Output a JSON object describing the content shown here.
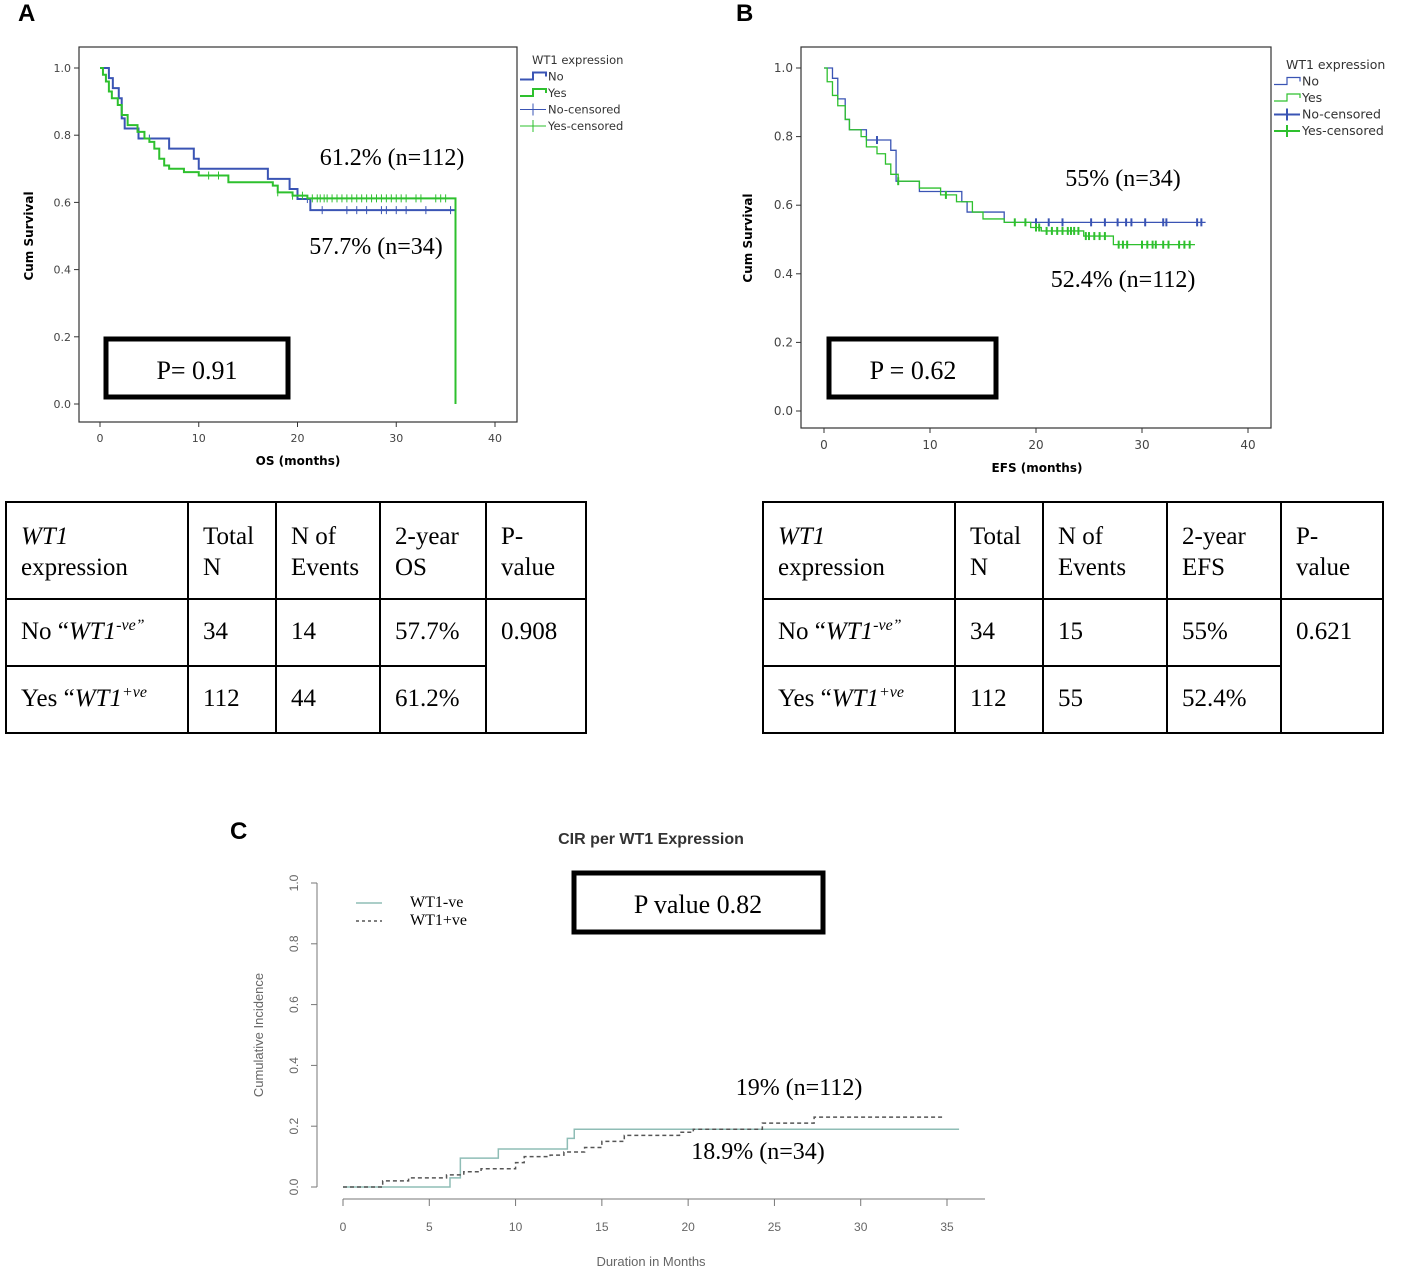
{
  "panels": {
    "a": "A",
    "b": "B",
    "c": "C"
  },
  "colors": {
    "no": "#3a54b4",
    "yes": "#2ec02e",
    "ci_neg": "#8fbdb6",
    "ci_pos": "#555555"
  },
  "chart_data": [
    {
      "type": "line",
      "subtype": "kaplan-meier",
      "xlabel": "OS (months)",
      "ylabel": "Cum Survival",
      "xlim": [
        0,
        40
      ],
      "ylim": [
        0,
        1
      ],
      "xticks": [
        "0",
        "10",
        "20",
        "30",
        "40"
      ],
      "yticks": [
        "0.0",
        "0.2",
        "0.4",
        "0.6",
        "0.8",
        "1.0"
      ],
      "legend": {
        "title": "WT1 expression",
        "items": [
          "No",
          "Yes",
          "No-censored",
          "Yes-censored"
        ],
        "placement": "right-outside"
      },
      "annotations": [
        "61.2% (n=112)",
        "57.7% (n=34)"
      ],
      "pvalue": "P= 0.91",
      "series": [
        {
          "name": "No",
          "color": "#3a54b4",
          "steps": [
            [
              0,
              1
            ],
            [
              0.9,
              0.97
            ],
            [
              1.3,
              0.94
            ],
            [
              1.9,
              0.91
            ],
            [
              2.2,
              0.85
            ],
            [
              2.5,
              0.82
            ],
            [
              3.9,
              0.79
            ],
            [
              7,
              0.76
            ],
            [
              9.5,
              0.73
            ],
            [
              10,
              0.7
            ],
            [
              17,
              0.67
            ],
            [
              19.2,
              0.64
            ],
            [
              20,
              0.61
            ],
            [
              21.3,
              0.577
            ]
          ],
          "end": 36,
          "censored": [
            5,
            21,
            22.5,
            25,
            26,
            27,
            28.5,
            29,
            30,
            31,
            33,
            35.5
          ]
        },
        {
          "name": "Yes",
          "color": "#2ec02e",
          "steps": [
            [
              0,
              1
            ],
            [
              0.3,
              0.98
            ],
            [
              0.6,
              0.96
            ],
            [
              0.9,
              0.93
            ],
            [
              1.2,
              0.91
            ],
            [
              1.8,
              0.89
            ],
            [
              2.2,
              0.86
            ],
            [
              2.8,
              0.83
            ],
            [
              3.8,
              0.81
            ],
            [
              4.5,
              0.79
            ],
            [
              5,
              0.78
            ],
            [
              5.5,
              0.76
            ],
            [
              6,
              0.73
            ],
            [
              6.5,
              0.71
            ],
            [
              7,
              0.7
            ],
            [
              8.5,
              0.69
            ],
            [
              10,
              0.68
            ],
            [
              13,
              0.66
            ],
            [
              17.5,
              0.65
            ],
            [
              18,
              0.63
            ],
            [
              19.5,
              0.62
            ],
            [
              21,
              0.612
            ]
          ],
          "end": 36,
          "drop_to": 0,
          "censored": [
            11,
            12,
            18,
            19.5,
            20.5,
            21.5,
            22,
            22.3,
            22.7,
            23,
            23.5,
            24,
            24.5,
            25,
            25.5,
            26,
            26.5,
            27,
            27.5,
            28,
            28.5,
            29,
            29.5,
            30,
            30.5,
            31,
            32,
            32.5,
            34,
            34.5,
            35
          ]
        }
      ]
    },
    {
      "type": "line",
      "subtype": "kaplan-meier",
      "xlabel": "EFS (months)",
      "ylabel": "Cum Survival",
      "xlim": [
        0,
        40
      ],
      "ylim": [
        0,
        1
      ],
      "xticks": [
        "0",
        "10",
        "20",
        "30",
        "40"
      ],
      "yticks": [
        "0.0",
        "0.2",
        "0.4",
        "0.6",
        "0.8",
        "1.0"
      ],
      "legend": {
        "title": "WT1 expression",
        "items": [
          "No",
          "Yes",
          "No-censored",
          "Yes-censored"
        ],
        "placement": "right-outside"
      },
      "annotations": [
        "55% (n=34)",
        "52.4% (n=112)"
      ],
      "pvalue": "P = 0.62",
      "series": [
        {
          "name": "No",
          "color": "#3a54b4",
          "steps": [
            [
              0,
              1
            ],
            [
              0.8,
              0.97
            ],
            [
              1.3,
              0.91
            ],
            [
              2,
              0.85
            ],
            [
              2.4,
              0.82
            ],
            [
              4,
              0.79
            ],
            [
              6.3,
              0.76
            ],
            [
              6.8,
              0.67
            ],
            [
              9,
              0.64
            ],
            [
              13,
              0.61
            ],
            [
              13.5,
              0.58
            ],
            [
              17,
              0.55
            ]
          ],
          "end": 36,
          "censored": [
            5,
            20,
            21.2,
            22.5,
            25.2,
            26.5,
            27.7,
            28.5,
            29,
            30.3,
            32,
            32.3,
            35.2,
            35.6
          ]
        },
        {
          "name": "Yes",
          "color": "#2ec02e",
          "steps": [
            [
              0,
              1
            ],
            [
              0.3,
              0.96
            ],
            [
              0.8,
              0.92
            ],
            [
              1.3,
              0.89
            ],
            [
              2,
              0.85
            ],
            [
              2.4,
              0.82
            ],
            [
              3.5,
              0.8
            ],
            [
              4,
              0.77
            ],
            [
              5,
              0.75
            ],
            [
              5.8,
              0.72
            ],
            [
              6.3,
              0.69
            ],
            [
              7,
              0.67
            ],
            [
              9,
              0.65
            ],
            [
              11,
              0.63
            ],
            [
              12.5,
              0.61
            ],
            [
              14,
              0.58
            ],
            [
              15,
              0.56
            ],
            [
              17,
              0.55
            ],
            [
              19.5,
              0.535
            ],
            [
              20.5,
              0.525
            ],
            [
              24.5,
              0.51
            ],
            [
              27.3,
              0.485
            ]
          ],
          "end": 35,
          "censored": [
            7,
            11.5,
            18,
            19,
            20,
            20.3,
            21,
            21.5,
            22,
            22.5,
            23,
            23.3,
            23.6,
            24,
            24.7,
            25,
            25.5,
            26,
            26.5,
            27.8,
            28.2,
            28.6,
            30,
            30.5,
            31,
            31.3,
            32,
            32.5,
            33.5,
            34,
            34.5
          ]
        }
      ]
    },
    {
      "type": "line",
      "subtype": "cumulative-incidence",
      "title": "CIR per WT1 Expression",
      "xlabel": "Duration in Months",
      "ylabel": "Cumulative Incidence",
      "xlim": [
        0,
        35
      ],
      "ylim": [
        0,
        1
      ],
      "xticks": [
        "0",
        "5",
        "10",
        "15",
        "20",
        "25",
        "30",
        "35"
      ],
      "yticks": [
        "0.0",
        "0.2",
        "0.4",
        "0.6",
        "0.8",
        "1.0"
      ],
      "legend": {
        "items": [
          "WT1-ve",
          "WT1+ve"
        ],
        "placement": "top-left"
      },
      "annotations": [
        "19% (n=112)",
        "18.9% (n=34)"
      ],
      "pvalue": "P value 0.82",
      "series": [
        {
          "name": "WT1-ve",
          "color": "#8fbdb6",
          "dashed": false,
          "steps": [
            [
              0,
              0
            ],
            [
              6.2,
              0.03
            ],
            [
              6.8,
              0.095
            ],
            [
              9,
              0.125
            ],
            [
              13,
              0.16
            ],
            [
              13.4,
              0.19
            ]
          ],
          "end": 35.7
        },
        {
          "name": "WT1+ve",
          "color": "#555555",
          "dashed": true,
          "steps": [
            [
              0,
              0
            ],
            [
              2.3,
              0.02
            ],
            [
              3.8,
              0.03
            ],
            [
              6,
              0.04
            ],
            [
              7,
              0.05
            ],
            [
              8,
              0.06
            ],
            [
              10,
              0.08
            ],
            [
              10.5,
              0.1
            ],
            [
              12,
              0.105
            ],
            [
              12.8,
              0.115
            ],
            [
              14,
              0.13
            ],
            [
              15,
              0.15
            ],
            [
              16.3,
              0.17
            ],
            [
              19.5,
              0.18
            ],
            [
              20.3,
              0.19
            ],
            [
              24.3,
              0.21
            ],
            [
              27.3,
              0.23
            ]
          ],
          "end": 34.8
        }
      ]
    }
  ],
  "tables": [
    {
      "header": {
        "c1a": "WT1",
        "c1b": "expression",
        "c2": "Total N",
        "c3": "N of Events",
        "c4": "2-year OS",
        "c5": "P-value"
      },
      "rows": [
        {
          "label": "No “",
          "gene": "WT1",
          "sup": "-ve”",
          "total": "34",
          "events": "14",
          "rate": "57.7%"
        },
        {
          "label": "Yes “",
          "gene": "WT1",
          "sup": "+ve",
          "total": "112",
          "events": "44",
          "rate": "61.2%"
        }
      ],
      "pvalue": "0.908"
    },
    {
      "header": {
        "c1a": "WT1",
        "c1b": "expression",
        "c2": "Total N",
        "c3": "N of Events",
        "c4": "2-year EFS",
        "c5": "P-value"
      },
      "rows": [
        {
          "label": "No “",
          "gene": "WT1",
          "sup": "-ve”",
          "total": "34",
          "events": "15",
          "rate": "55%"
        },
        {
          "label": "Yes “",
          "gene": "WT1",
          "sup": "+ve",
          "total": "112",
          "events": "55",
          "rate": "52.4%"
        }
      ],
      "pvalue": "0.621"
    }
  ]
}
